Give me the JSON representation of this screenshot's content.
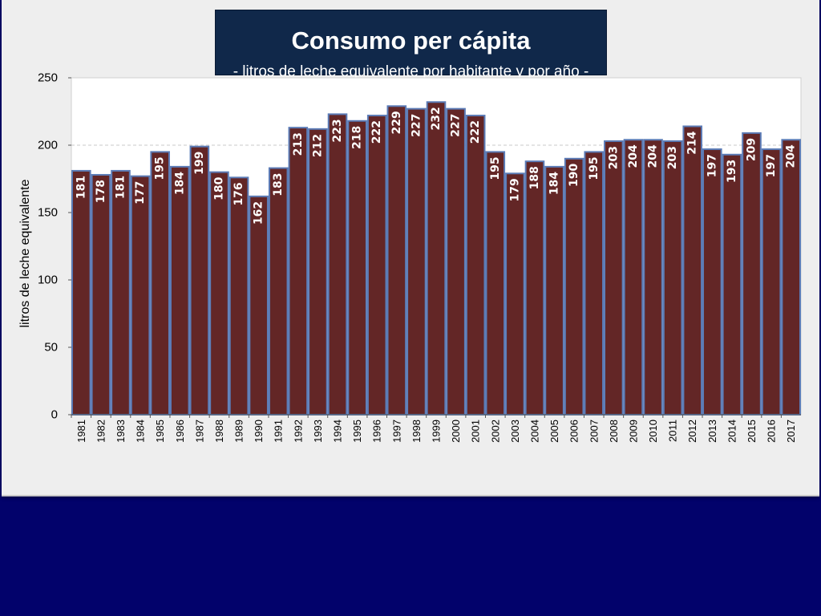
{
  "title": "Consumo per cápita",
  "subtitle": "- litros de leche equivalente por habitante y por año -",
  "colors": {
    "background": "#02026b",
    "panel": "#eeeeee",
    "title_box": "#10284a",
    "bar_fill": "#632626",
    "bar_stroke": "#5b7bb6",
    "gridline": "#c8c8c8"
  },
  "chart_data": {
    "type": "bar",
    "title": "Consumo per cápita",
    "subtitle": "- litros de leche equivalente por habitante y por año -",
    "xlabel": "",
    "ylabel": "litros de leche equivalente",
    "ylim": [
      0,
      250
    ],
    "yticks": [
      0,
      50,
      100,
      150,
      200,
      250
    ],
    "grid": "horizontal dashed at 200",
    "data_labels": "vertical, inside top of bars",
    "categories": [
      "1981",
      "1982",
      "1983",
      "1984",
      "1985",
      "1986",
      "1987",
      "1988",
      "1989",
      "1990",
      "1991",
      "1992",
      "1993",
      "1994",
      "1995",
      "1996",
      "1997",
      "1998",
      "1999",
      "2000",
      "2001",
      "2002",
      "2003",
      "2004",
      "2005",
      "2006",
      "2007",
      "2008",
      "2009",
      "2010",
      "2011",
      "2012",
      "2013",
      "2014",
      "2015",
      "2016",
      "2017"
    ],
    "values": [
      181,
      178,
      181,
      177,
      195,
      184,
      199,
      180,
      176,
      162,
      183,
      213,
      212,
      223,
      218,
      222,
      229,
      227,
      232,
      227,
      222,
      195,
      179,
      188,
      184,
      190,
      195,
      203,
      204,
      204,
      203,
      214,
      197,
      193,
      209,
      197,
      204
    ]
  }
}
